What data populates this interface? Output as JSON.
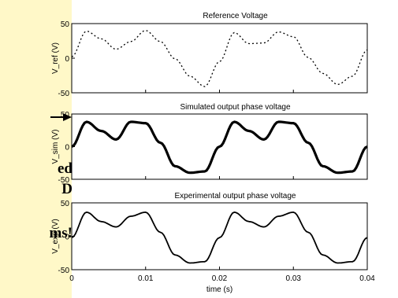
{
  "side_note": {
    "arrow_icon": "arrow-right-icon",
    "lines": [
      "ed",
      "D",
      "ms!"
    ]
  },
  "chart_data": [
    {
      "type": "line",
      "title": "Reference Voltage",
      "ylabel": "V_ref (V)",
      "ylim": [
        -50,
        50
      ],
      "yticks": [
        "50",
        "0",
        "-50"
      ],
      "xlim": [
        0,
        0.04
      ],
      "xticks": [
        "0",
        "0.01",
        "0.02",
        "0.03",
        "0.04"
      ],
      "grid": false,
      "line_style": "dotted",
      "series": [
        {
          "x": [
            0,
            0.002,
            0.004,
            0.006,
            0.008,
            0.01,
            0.012,
            0.014,
            0.016,
            0.018,
            0.02,
            0.022,
            0.024,
            0.026,
            0.028,
            0.03,
            0.032,
            0.034,
            0.036,
            0.038,
            0.04
          ],
          "values": [
            2,
            39,
            28,
            13,
            24,
            40,
            24,
            -1,
            -26,
            -41,
            -5,
            37,
            21,
            22,
            38,
            31,
            1,
            -22,
            -38,
            -26,
            12
          ]
        }
      ]
    },
    {
      "type": "line",
      "title": "Simulated output phase voltage",
      "ylabel": "V_sim (V)",
      "ylim": [
        -50,
        50
      ],
      "yticks": [
        "50",
        "0",
        "-50"
      ],
      "xlim": [
        0,
        0.04
      ],
      "xticks": [
        "0",
        "0.01",
        "0.02",
        "0.03",
        "0.04"
      ],
      "grid": false,
      "line_style": "stepped",
      "series": [
        {
          "x": [
            0,
            0.002,
            0.004,
            0.006,
            0.008,
            0.01,
            0.012,
            0.014,
            0.016,
            0.018,
            0.02,
            0.022,
            0.024,
            0.026,
            0.028,
            0.03,
            0.032,
            0.034,
            0.036,
            0.038,
            0.04
          ],
          "values": [
            0,
            38,
            24,
            11,
            38,
            36,
            6,
            -30,
            -40,
            -38,
            0,
            38,
            24,
            11,
            38,
            36,
            6,
            -30,
            -40,
            -38,
            0
          ]
        }
      ]
    },
    {
      "type": "line",
      "title": "Experimental output phase voltage",
      "ylabel": "V_exp (V)",
      "ylim": [
        -50,
        50
      ],
      "yticks": [
        "50",
        "0",
        "-50"
      ],
      "xlim": [
        0,
        0.04
      ],
      "xlabel": "time (s)",
      "xticks": [
        "0",
        "0.01",
        "0.02",
        "0.03",
        "0.04"
      ],
      "grid": false,
      "line_style": "solid",
      "series": [
        {
          "x": [
            0,
            0.002,
            0.004,
            0.006,
            0.008,
            0.01,
            0.012,
            0.014,
            0.016,
            0.018,
            0.02,
            0.022,
            0.024,
            0.026,
            0.028,
            0.03,
            0.032,
            0.034,
            0.036,
            0.038,
            0.04
          ],
          "values": [
            -2,
            36,
            22,
            14,
            30,
            36,
            6,
            -28,
            -40,
            -38,
            -2,
            36,
            22,
            14,
            30,
            36,
            6,
            -28,
            -40,
            -38,
            -2
          ]
        }
      ]
    }
  ]
}
